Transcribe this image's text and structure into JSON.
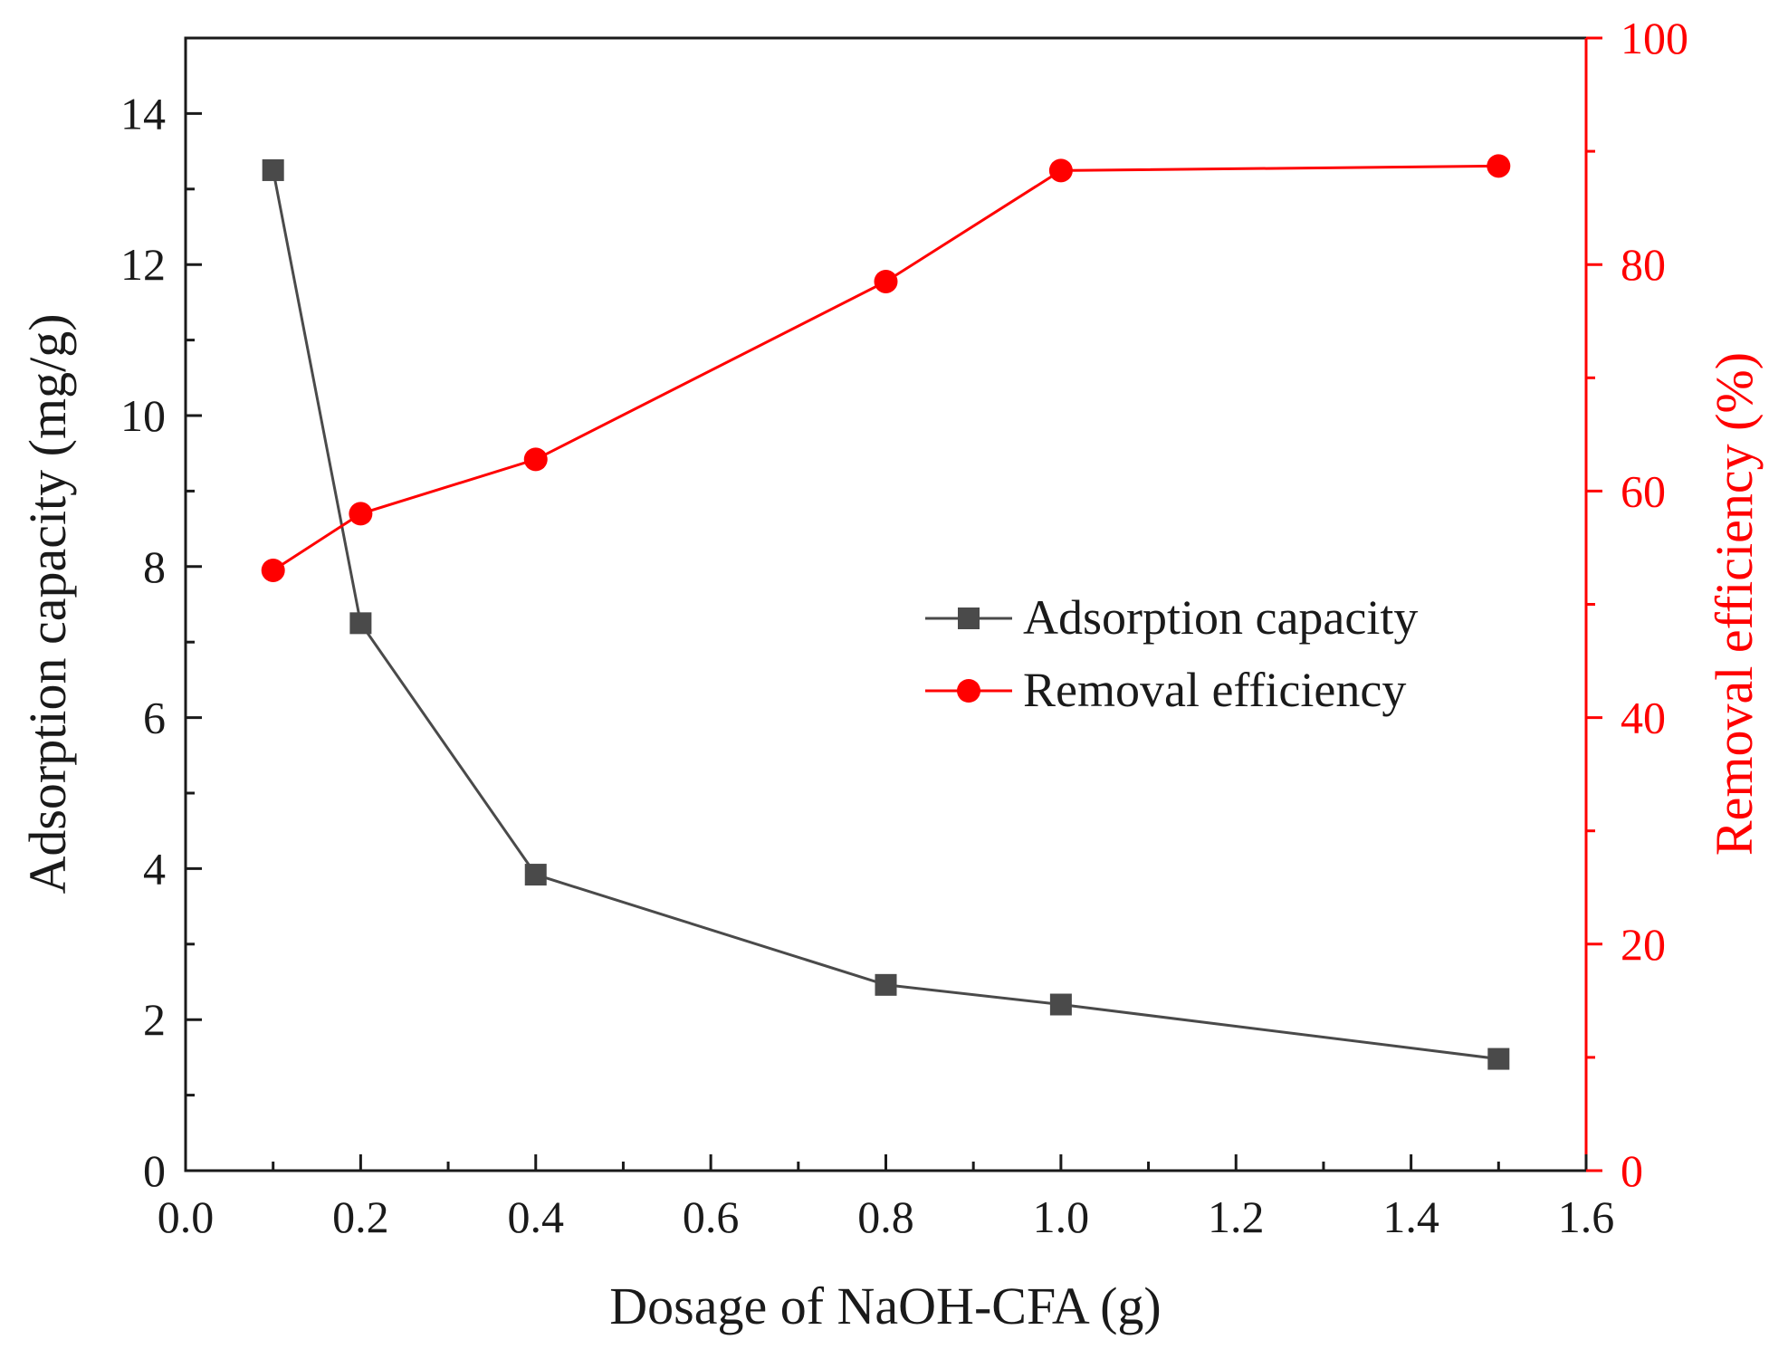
{
  "chart_data": {
    "type": "line",
    "title": "",
    "xlabel": "Dosage of NaOH-CFA (g)",
    "ylabel": "Adsorption capacity (mg/g)",
    "y2label": "Removal efficiency (%)",
    "xlim": [
      0.0,
      1.6
    ],
    "ylim": [
      0,
      15
    ],
    "y2lim": [
      0,
      100
    ],
    "x_ticks": [
      "0.0",
      "0.2",
      "0.4",
      "0.6",
      "0.8",
      "1.0",
      "1.2",
      "1.4",
      "1.6"
    ],
    "y_ticks": [
      "0",
      "2",
      "4",
      "6",
      "8",
      "10",
      "12",
      "14"
    ],
    "y2_ticks": [
      "0",
      "20",
      "40",
      "60",
      "80",
      "100"
    ],
    "grid": false,
    "legend_position": "center-right",
    "series": [
      {
        "name": "Adsorption capacity",
        "axis": "left",
        "marker": "square",
        "color": "#4a4a4a",
        "x": [
          0.1,
          0.2,
          0.4,
          0.8,
          1.0,
          1.5
        ],
        "values": [
          13.25,
          7.25,
          3.92,
          2.46,
          2.2,
          1.48
        ]
      },
      {
        "name": "Removal efficiency",
        "axis": "right",
        "marker": "circle",
        "color": "#ff0000",
        "x": [
          0.1,
          0.2,
          0.4,
          0.8,
          1.0,
          1.5
        ],
        "values": [
          53.0,
          58.0,
          62.8,
          78.5,
          88.3,
          88.7
        ]
      }
    ]
  }
}
